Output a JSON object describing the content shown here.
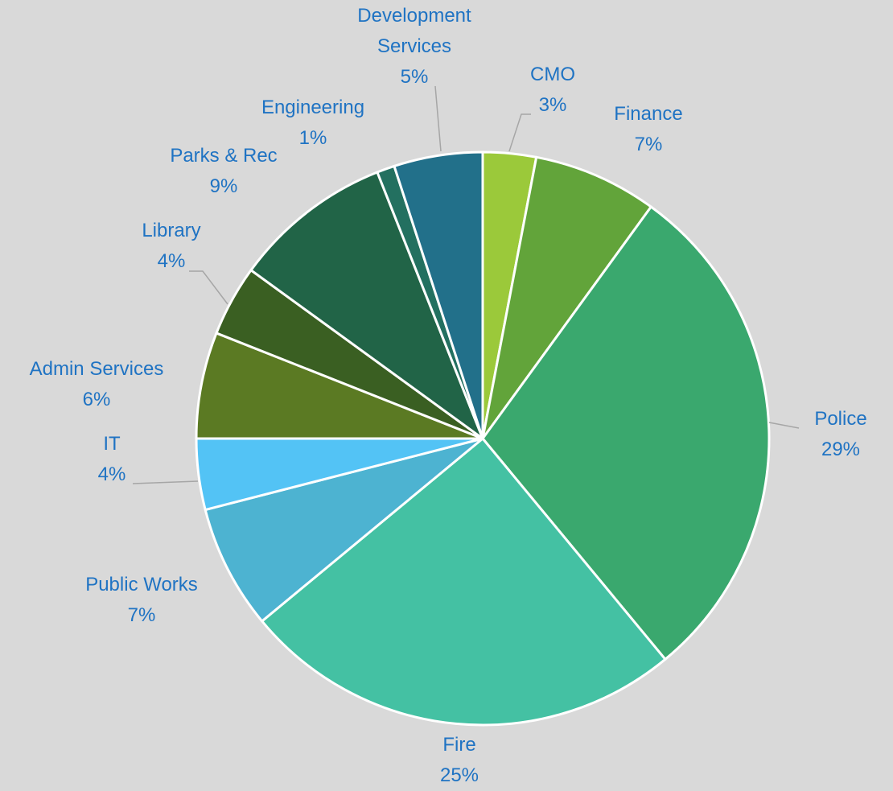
{
  "chart_data": {
    "type": "pie",
    "categories": [
      "CMO",
      "Finance",
      "Police",
      "Fire",
      "Public Works",
      "IT",
      "Admin Services",
      "Library",
      "Parks & Rec",
      "Engineering",
      "Development Services"
    ],
    "values": [
      3,
      7,
      29,
      25,
      7,
      4,
      6,
      4,
      9,
      1,
      5
    ],
    "value_labels": [
      "3%",
      "7%",
      "29%",
      "25%",
      "7%",
      "4%",
      "6%",
      "4%",
      "9%",
      "1%",
      "5%"
    ],
    "colors": [
      "#9bc93a",
      "#62a43a",
      "#3aa86e",
      "#44c1a3",
      "#4db3d1",
      "#53c3f5",
      "#5b7a23",
      "#3a5f22",
      "#216447",
      "#237060",
      "#22708a"
    ]
  }
}
